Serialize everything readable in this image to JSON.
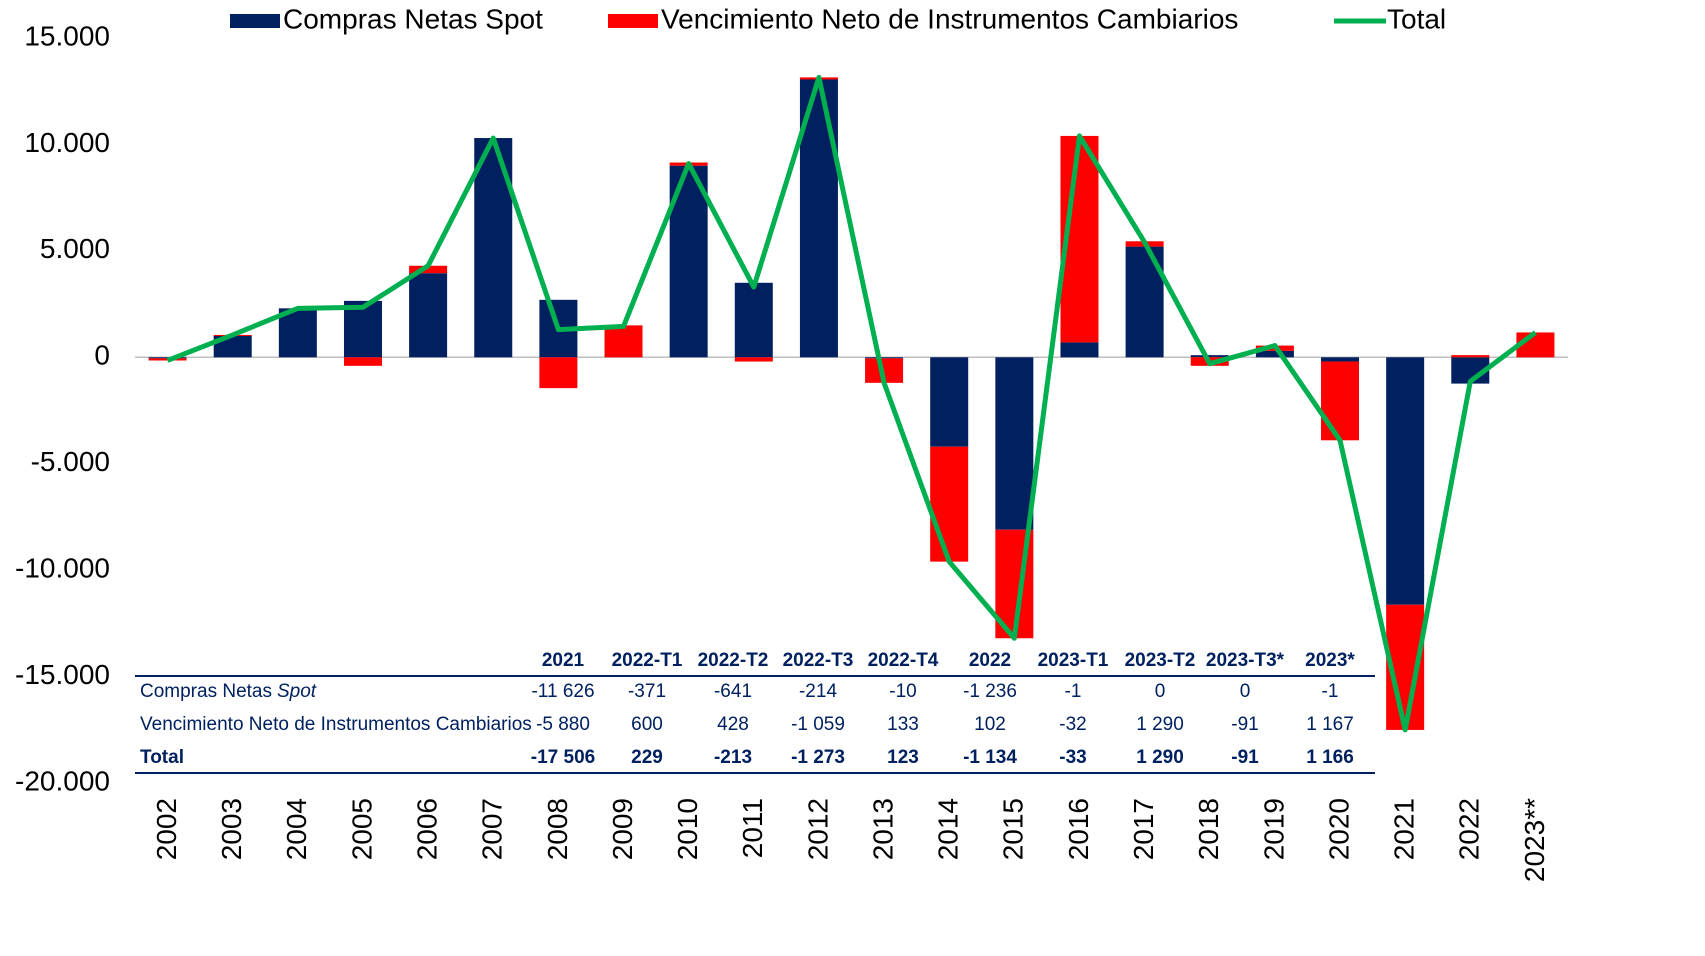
{
  "chart_data": {
    "type": "bar",
    "categories": [
      "2002",
      "2003",
      "2004",
      "2005",
      "2006",
      "2007",
      "2008",
      "2009",
      "2010",
      "2011",
      "2012",
      "2013",
      "2014",
      "2015",
      "2016",
      "2017",
      "2018",
      "2019",
      "2020",
      "2021",
      "2022",
      "2023**"
    ],
    "series": [
      {
        "name": "Compras Netas Spot",
        "color": "#002060",
        "type": "bar",
        "values": [
          -50,
          1000,
          2300,
          2650,
          3950,
          10300,
          2700,
          0,
          9000,
          3500,
          13050,
          -50,
          -4200,
          -8100,
          700,
          5200,
          100,
          300,
          -200,
          -11626,
          -1236,
          -1
        ]
      },
      {
        "name": "Vencimiento Neto de Instrumentos Cambiarios",
        "color": "#ff0000",
        "type": "bar",
        "values": [
          -100,
          50,
          0,
          -400,
          350,
          0,
          -1450,
          1500,
          150,
          -200,
          100,
          -1150,
          -5400,
          -5100,
          9700,
          250,
          -400,
          250,
          -3700,
          -5880,
          102,
          1167
        ]
      },
      {
        "name": "Total",
        "color": "#00b050",
        "type": "line",
        "values": [
          -150,
          1050,
          2300,
          2350,
          4300,
          10300,
          1300,
          1450,
          9100,
          3300,
          13150,
          -1200,
          -9600,
          -13200,
          10400,
          5400,
          -300,
          550,
          -3900,
          -17506,
          -1134,
          1166
        ]
      }
    ],
    "ylim": [
      -20000,
      15000
    ],
    "yticks": [
      {
        "value": -20000,
        "label": "-20.000"
      },
      {
        "value": -15000,
        "label": "-15.000"
      },
      {
        "value": -10000,
        "label": "-10.000"
      },
      {
        "value": -5000,
        "label": "-5.000"
      },
      0,
      {
        "value": 5000,
        "label": "5.000"
      },
      {
        "value": 10000,
        "label": "10.000"
      },
      {
        "value": 15000,
        "label": "15.000"
      }
    ],
    "legend": "top"
  },
  "table": {
    "columns": [
      "2021",
      "2022-T1",
      "2022-T2",
      "2022-T3",
      "2022-T4",
      "2022",
      "2023-T1",
      "2023-T2",
      "2023-T3*",
      "2023*"
    ],
    "rows": [
      {
        "label": [
          "Compras Netas",
          "Spot"
        ],
        "values": [
          "-11 626",
          "-371",
          "-641",
          "-214",
          "-10",
          "-1 236",
          "-1",
          "0",
          "0",
          "-1"
        ]
      },
      {
        "label": [
          "Vencimiento Neto de Instrumentos Cambiarios"
        ],
        "values": [
          "-5 880",
          "600",
          "428",
          "-1 059",
          "133",
          "102",
          "-32",
          "1 290",
          "-91",
          "1 167"
        ]
      },
      {
        "label": [
          "Total"
        ],
        "values": [
          "-17 506",
          "229",
          "-213",
          "-1 273",
          "123",
          "-1 134",
          "-33",
          "1 290",
          "-91",
          "1 166"
        ]
      }
    ]
  }
}
